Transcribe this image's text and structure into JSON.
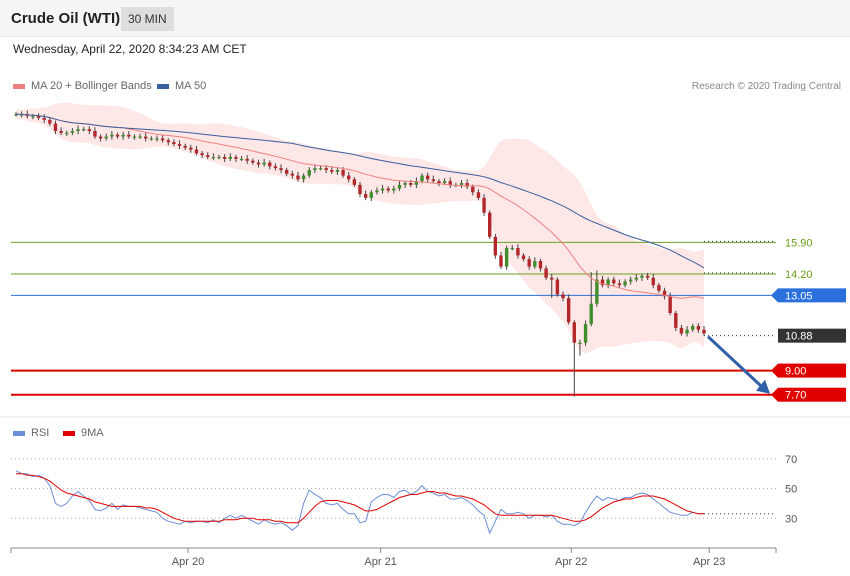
{
  "header": {
    "instrument": "Crude Oil (WTI)",
    "timeframe": "30 MIN",
    "datetime": "Wednesday, April 22, 2020 8:34:23 AM CET"
  },
  "legend_price": {
    "ma20_label": "MA 20 + Bollinger Bands",
    "ma20_color": "#f08080",
    "ma50_label": "MA 50",
    "ma50_color": "#3a5f9e"
  },
  "credit": "Research © 2020 Trading Central",
  "legend_rsi": {
    "rsi_label": "RSI",
    "rsi_color": "#6a8fd8",
    "ma_label": "9MA",
    "ma_color": "#e00000"
  },
  "chart_data": [
    {
      "type": "line",
      "name": "price",
      "ylim": [
        6.5,
        24.0
      ],
      "x_ticks": [
        {
          "label": "Apr 20",
          "pos": 0.25
        },
        {
          "label": "Apr 21",
          "pos": 0.53
        },
        {
          "label": "Apr 22",
          "pos": 0.807
        },
        {
          "label": "Apr 23",
          "pos": 0.916
        }
      ],
      "close_series": [
        22.8,
        22.8,
        22.7,
        22.7,
        22.6,
        22.5,
        22.3,
        21.9,
        21.8,
        21.8,
        21.9,
        22.0,
        22.0,
        21.9,
        21.6,
        21.5,
        21.6,
        21.7,
        21.6,
        21.7,
        21.6,
        21.6,
        21.6,
        21.5,
        21.5,
        21.5,
        21.4,
        21.3,
        21.2,
        21.1,
        21.0,
        20.9,
        20.7,
        20.6,
        20.5,
        20.5,
        20.5,
        20.4,
        20.5,
        20.4,
        20.4,
        20.3,
        20.2,
        20.1,
        20.2,
        20.0,
        19.9,
        19.8,
        19.6,
        19.5,
        19.3,
        19.5,
        19.8,
        19.9,
        19.9,
        19.8,
        19.7,
        19.8,
        19.5,
        19.3,
        19.0,
        18.5,
        18.3,
        18.6,
        18.7,
        18.8,
        18.7,
        18.8,
        19.0,
        19.1,
        19.0,
        19.2,
        19.5,
        19.3,
        19.2,
        19.1,
        19.2,
        19.0,
        19.0,
        19.1,
        18.9,
        18.6,
        18.3,
        17.5,
        16.2,
        15.2,
        14.6,
        15.6,
        15.6,
        15.2,
        15.0,
        14.6,
        14.9,
        14.5,
        14.0,
        13.9,
        13.1,
        12.9,
        11.6,
        10.5,
        10.5,
        11.5,
        12.6,
        13.9,
        13.6,
        13.9,
        13.7,
        13.6,
        13.8,
        13.9,
        14.0,
        14.1,
        14.0,
        13.6,
        13.3,
        13.0,
        12.1,
        11.3,
        11.0,
        11.2,
        11.4,
        11.2,
        11.0
      ],
      "horizontal_levels": [
        {
          "value": 15.9,
          "label": "15.90",
          "color": "#6aa01e",
          "style": "resistance"
        },
        {
          "value": 14.2,
          "label": "14.20",
          "color": "#6aa01e",
          "style": "resistance"
        },
        {
          "value": 13.05,
          "label": "13.05",
          "color": "#2a6fdb",
          "style": "pivot"
        },
        {
          "value": 10.88,
          "label": "10.88",
          "color": "#333333",
          "style": "last"
        },
        {
          "value": 9.0,
          "label": "9.00",
          "color": "#e00000",
          "style": "support"
        },
        {
          "value": 7.7,
          "label": "7.70",
          "color": "#e00000",
          "style": "support"
        }
      ],
      "forecast_arrow": {
        "from": 10.88,
        "to": 7.7,
        "color": "#2f5fa8"
      }
    },
    {
      "type": "line",
      "name": "RSI",
      "ylim": [
        10,
        80
      ],
      "y_ticks": [
        70,
        50,
        30
      ],
      "rsi": [
        62,
        60,
        60,
        58,
        59,
        57,
        52,
        40,
        38,
        40,
        45,
        48,
        45,
        42,
        36,
        35,
        37,
        40,
        36,
        39,
        38,
        38,
        37,
        36,
        35,
        34,
        30,
        28,
        27,
        26,
        28,
        27,
        28,
        28,
        27,
        29,
        27,
        30,
        32,
        30,
        32,
        30,
        28,
        26,
        29,
        27,
        26,
        27,
        25,
        22,
        25,
        40,
        49,
        46,
        44,
        40,
        39,
        40,
        36,
        33,
        33,
        27,
        28,
        41,
        44,
        46,
        46,
        44,
        48,
        49,
        46,
        48,
        52,
        48,
        47,
        45,
        46,
        43,
        43,
        44,
        42,
        39,
        35,
        32,
        20,
        28,
        36,
        33,
        33,
        34,
        33,
        30,
        32,
        32,
        31,
        32,
        28,
        26,
        26,
        25,
        27,
        34,
        40,
        45,
        42,
        44,
        43,
        42,
        44,
        44,
        46,
        47,
        46,
        43,
        40,
        37,
        34,
        33,
        32,
        32,
        34,
        33,
        33
      ],
      "rsi_ma": [
        60,
        60,
        59,
        59,
        58,
        57,
        55,
        52,
        49,
        47,
        46,
        45,
        44,
        43,
        41,
        40,
        39,
        38,
        38,
        38,
        38,
        38,
        38,
        37,
        37,
        36,
        34,
        32,
        30,
        29,
        28,
        28,
        28,
        28,
        28,
        28,
        28,
        29,
        29,
        29,
        30,
        30,
        30,
        29,
        29,
        29,
        28,
        28,
        27,
        27,
        27,
        30,
        34,
        38,
        41,
        42,
        42,
        42,
        41,
        40,
        39,
        37,
        35,
        35,
        36,
        38,
        40,
        42,
        44,
        45,
        46,
        46,
        47,
        48,
        48,
        47,
        47,
        46,
        45,
        45,
        44,
        43,
        41,
        39,
        36,
        33,
        32,
        32,
        32,
        32,
        32,
        32,
        32,
        32,
        32,
        32,
        31,
        30,
        29,
        28,
        28,
        29,
        31,
        34,
        37,
        39,
        41,
        42,
        43,
        43,
        44,
        45,
        45,
        45,
        44,
        43,
        41,
        39,
        37,
        35,
        34,
        33,
        33
      ]
    }
  ]
}
